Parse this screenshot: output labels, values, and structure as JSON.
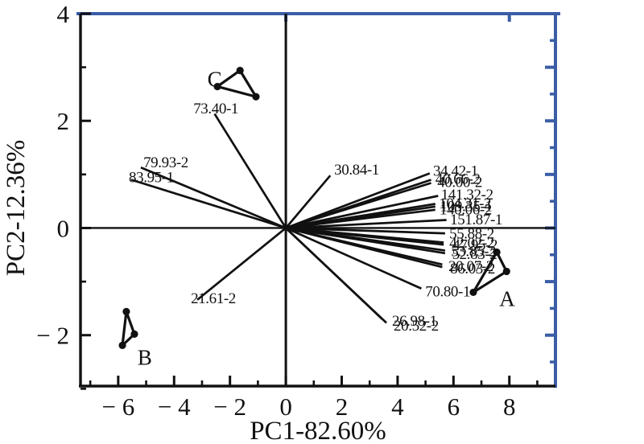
{
  "chart_data": {
    "type": "scatter",
    "subtype": "pca-biplot-with-loading-vectors",
    "title": "",
    "xlabel": "PC1-82.60%",
    "ylabel": "PC2-12.36%",
    "xlim": [
      -7.35,
      9.65
    ],
    "ylim": [
      -2.95,
      4.0
    ],
    "grid": false,
    "x_major_ticks": [
      -6,
      -4,
      -2,
      0,
      2,
      4,
      6,
      8
    ],
    "x_major_tick_labels": [
      "− 6",
      "− 4",
      "− 2",
      "0",
      "2",
      "4",
      "6",
      "8"
    ],
    "x_minor_ticks": [
      -7,
      -5,
      -3,
      -1,
      1,
      3,
      5,
      7,
      9
    ],
    "y_major_ticks": [
      -2,
      0,
      2,
      4
    ],
    "y_major_tick_labels": [
      "− 2",
      "0",
      "2",
      "4"
    ],
    "y_minor_ticks": [
      -3,
      -1,
      1,
      3
    ],
    "top_axis_ticks": [
      0,
      8
    ],
    "right_axis_major_ticks": [
      -2,
      -1,
      0,
      1,
      2,
      3
    ],
    "right_axis_minor_ticks": [
      -2.5,
      -1.5,
      -0.5,
      0.5,
      1.5,
      2.5,
      3.5
    ],
    "colors": {
      "axis": "#111111",
      "frame_top_right": "#3a5da6",
      "data": "#111111",
      "background": "#ffffff"
    },
    "loading_vectors": [
      {
        "label": "73.40-1",
        "x": -2.55,
        "y": 2.13,
        "lx": -3.31,
        "ly": 2.24
      },
      {
        "label": "79.93-2",
        "x": -5.19,
        "y": 1.13,
        "lx": -5.1,
        "ly": 1.24
      },
      {
        "label": "83.95-1",
        "x": -5.53,
        "y": 0.9,
        "lx": -5.62,
        "ly": 0.96
      },
      {
        "label": "30.84-1",
        "x": 1.59,
        "y": 0.98,
        "lx": 1.73,
        "ly": 1.1
      },
      {
        "label": "21.61-2",
        "x": -3.17,
        "y": -1.34,
        "lx": -3.4,
        "ly": -1.3
      },
      {
        "label": "26.98-1",
        "x": 3.45,
        "y": -1.7,
        "lx": 3.8,
        "ly": -1.72
      },
      {
        "label": "20.52-2",
        "x": 3.6,
        "y": -1.77,
        "lx": 3.86,
        "ly": -1.81
      },
      {
        "label": "34.42-1",
        "x": 5.15,
        "y": 1.02,
        "lx": 5.27,
        "ly": 1.08
      },
      {
        "label": "40.66-2",
        "x": 5.2,
        "y": 0.9,
        "lx": 5.35,
        "ly": 0.93
      },
      {
        "label": "40.00-2",
        "x": 5.2,
        "y": 0.84,
        "lx": 5.42,
        "ly": 0.87
      },
      {
        "label": "141.32-2",
        "x": 5.45,
        "y": 0.6,
        "lx": 5.55,
        "ly": 0.64
      },
      {
        "label": "104.31-2",
        "x": 5.35,
        "y": 0.45,
        "lx": 5.48,
        "ly": 0.47
      },
      {
        "label": "109.35-1",
        "x": 5.35,
        "y": 0.4,
        "lx": 5.52,
        "ly": 0.42
      },
      {
        "label": "140.06-2",
        "x": 5.35,
        "y": 0.34,
        "lx": 5.5,
        "ly": 0.36
      },
      {
        "label": "151.87-1",
        "x": 5.75,
        "y": 0.15,
        "lx": 5.88,
        "ly": 0.17
      },
      {
        "label": "55.88-2",
        "x": 5.7,
        "y": -0.1,
        "lx": 5.85,
        "ly": -0.09
      },
      {
        "label": "42.02-2",
        "x": 5.65,
        "y": -0.27,
        "lx": 5.85,
        "ly": -0.26
      },
      {
        "label": "47.95-2",
        "x": 5.65,
        "y": -0.31,
        "lx": 5.97,
        "ly": -0.3
      },
      {
        "label": "53.85-2",
        "x": 5.7,
        "y": -0.42,
        "lx": 5.91,
        "ly": -0.42
      },
      {
        "label": "52.83-2",
        "x": 5.7,
        "y": -0.47,
        "lx": 5.95,
        "ly": -0.47
      },
      {
        "label": "20.07-2",
        "x": 5.6,
        "y": -0.68,
        "lx": 5.82,
        "ly": -0.7
      },
      {
        "label": "86.03-2",
        "x": 5.6,
        "y": -0.73,
        "lx": 5.88,
        "ly": -0.74
      },
      {
        "label": "70.80-1",
        "x": 4.85,
        "y": -1.13,
        "lx": 4.99,
        "ly": -1.17
      }
    ],
    "clusters": [
      {
        "name": "A",
        "label_x": 7.92,
        "label_y": -1.32,
        "points": [
          [
            7.55,
            -0.45
          ],
          [
            7.9,
            -0.81
          ],
          [
            6.71,
            -1.2
          ]
        ]
      },
      {
        "name": "B",
        "label_x": -5.05,
        "label_y": -2.42,
        "points": [
          [
            -5.71,
            -1.56
          ],
          [
            -5.42,
            -1.98
          ],
          [
            -5.85,
            -2.19
          ]
        ]
      },
      {
        "name": "C",
        "label_x": -2.55,
        "label_y": 2.78,
        "points": [
          [
            -1.64,
            2.94
          ],
          [
            -2.45,
            2.64
          ],
          [
            -1.07,
            2.45
          ]
        ]
      }
    ]
  }
}
